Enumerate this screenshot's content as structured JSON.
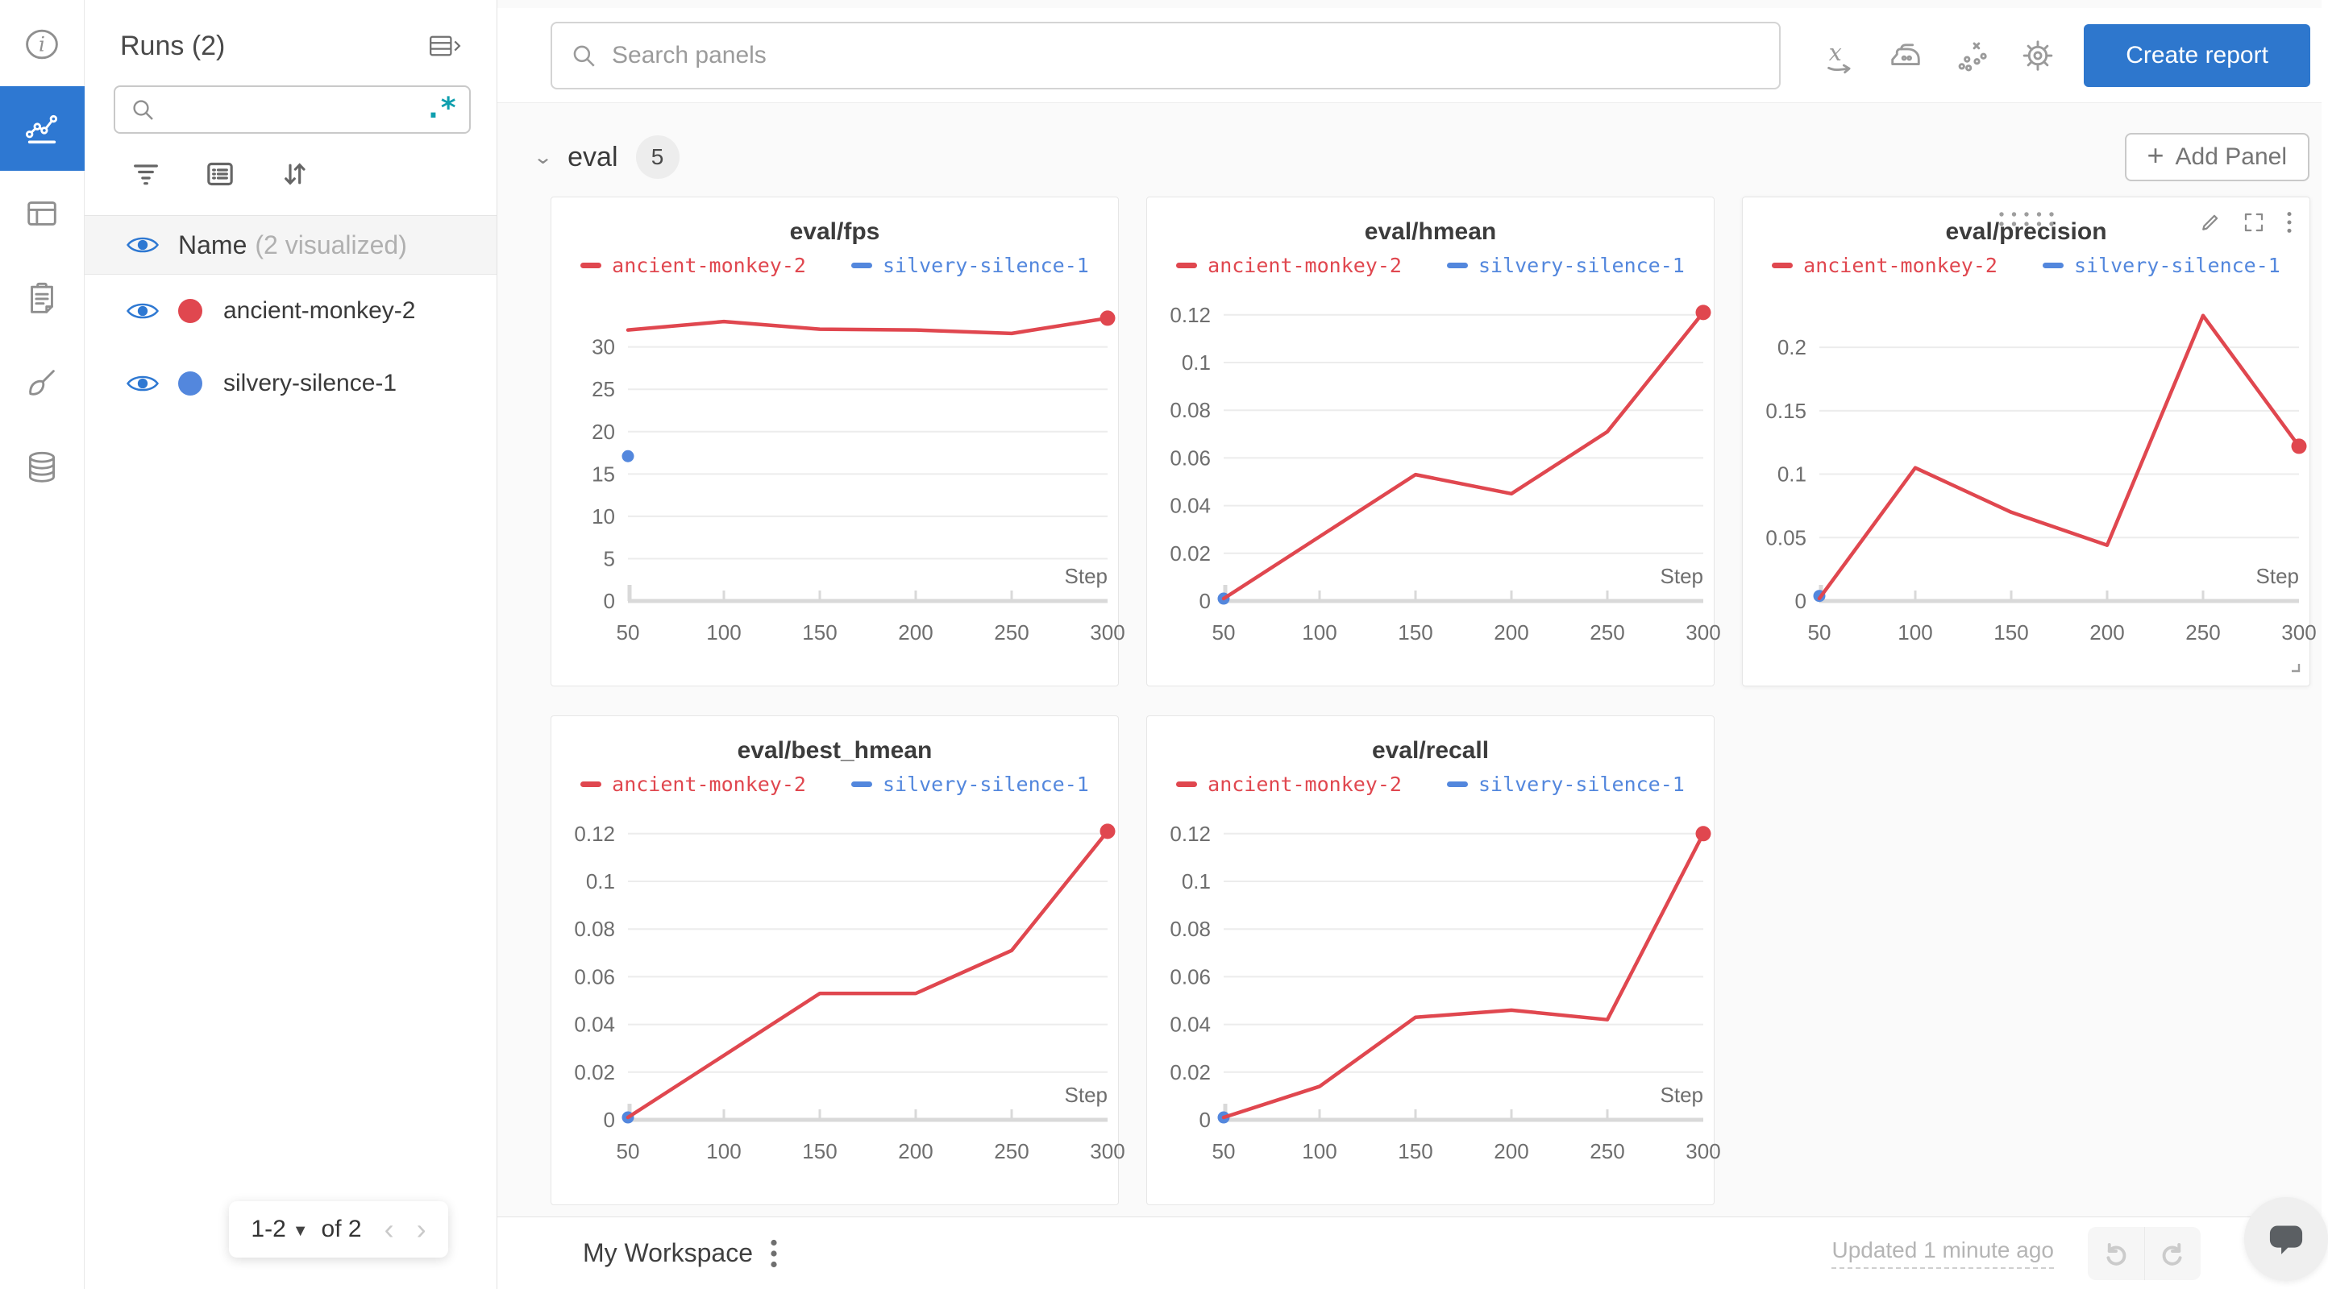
{
  "colors": {
    "accent_blue": "#2e78d2",
    "button_blue": "#2e77cd",
    "run_red": "#e0474f",
    "run_blue": "#5387dd",
    "regex_teal": "#0f9fae"
  },
  "sidebar": {
    "items": [
      {
        "icon": "info-icon",
        "active": false
      },
      {
        "icon": "line-chart-icon",
        "active": true
      },
      {
        "icon": "table-icon",
        "active": false
      },
      {
        "icon": "clipboard-icon",
        "active": false
      },
      {
        "icon": "broom-icon",
        "active": false
      },
      {
        "icon": "database-icon",
        "active": false
      }
    ]
  },
  "runs_panel": {
    "title": "Runs (2)",
    "search": {
      "value": "",
      "regex_glyph": ".*"
    },
    "header_row": {
      "label": "Name",
      "annotation": "(2 visualized)"
    },
    "runs": [
      {
        "name": "ancient-monkey-2",
        "color": "#e0474f",
        "visible": true
      },
      {
        "name": "silvery-silence-1",
        "color": "#5387dd",
        "visible": true
      }
    ],
    "pagination": {
      "range_label": "1-2",
      "of_label": "of 2"
    }
  },
  "topbar": {
    "search_placeholder": "Search panels",
    "icons": [
      "x-axis-icon",
      "smoothing-iron-icon",
      "outlier-scatter-icon",
      "settings-gear-icon"
    ],
    "create_report_label": "Create report"
  },
  "section": {
    "title": "eval",
    "panel_count": "5",
    "add_panel_plus": "+",
    "add_panel_label": "Add Panel"
  },
  "footer": {
    "workspace_label": "My Workspace",
    "updated_label": "Updated 1 minute ago"
  },
  "chart_data": [
    {
      "type": "line",
      "title": "eval/fps",
      "xlabel": "Step",
      "x_ticks": [
        50,
        100,
        150,
        200,
        250,
        300
      ],
      "y_ticks": [
        0,
        5,
        10,
        15,
        20,
        25,
        30
      ],
      "xlim": [
        50,
        300
      ],
      "ylim": [
        0,
        35.2
      ],
      "grid": true,
      "legend_position": "top",
      "hovered": false,
      "series": [
        {
          "name": "ancient-monkey-2",
          "color": "#e0474f",
          "x": [
            50,
            100,
            150,
            200,
            250,
            300
          ],
          "y": [
            32.0,
            33.0,
            32.1,
            32.0,
            31.6,
            33.4
          ],
          "marker_end": true
        },
        {
          "name": "silvery-silence-1",
          "color": "#5387dd",
          "x": [
            50
          ],
          "y": [
            17.1
          ],
          "scatter_only": true
        }
      ]
    },
    {
      "type": "line",
      "title": "eval/hmean",
      "xlabel": "Step",
      "x_ticks": [
        50,
        100,
        150,
        200,
        250,
        300
      ],
      "y_ticks": [
        0,
        0.02,
        0.04,
        0.06,
        0.08,
        0.1,
        0.12
      ],
      "xlim": [
        50,
        300
      ],
      "ylim": [
        0,
        0.125
      ],
      "grid": true,
      "legend_position": "top",
      "hovered": false,
      "series": [
        {
          "name": "ancient-monkey-2",
          "color": "#e0474f",
          "x": [
            50,
            150,
            200,
            250,
            300
          ],
          "y": [
            0.001,
            0.053,
            0.045,
            0.071,
            0.121
          ],
          "marker_end": true
        },
        {
          "name": "silvery-silence-1",
          "color": "#5387dd",
          "x": [
            50
          ],
          "y": [
            0.001
          ],
          "scatter_only": true
        }
      ]
    },
    {
      "type": "line",
      "title": "eval/precision",
      "xlabel": "Step",
      "x_ticks": [
        50,
        100,
        150,
        200,
        250,
        300
      ],
      "y_ticks": [
        0,
        0.05,
        0.1,
        0.15,
        0.2
      ],
      "xlim": [
        50,
        300
      ],
      "ylim": [
        0,
        0.235
      ],
      "grid": true,
      "legend_position": "top",
      "hovered": true,
      "series": [
        {
          "name": "ancient-monkey-2",
          "color": "#e0474f",
          "x": [
            50,
            100,
            150,
            200,
            250,
            300
          ],
          "y": [
            0.002,
            0.105,
            0.07,
            0.044,
            0.225,
            0.122
          ],
          "marker_end": true
        },
        {
          "name": "silvery-silence-1",
          "color": "#5387dd",
          "x": [
            50
          ],
          "y": [
            0.004
          ],
          "scatter_only": true
        }
      ]
    },
    {
      "type": "line",
      "title": "eval/best_hmean",
      "xlabel": "Step",
      "x_ticks": [
        50,
        100,
        150,
        200,
        250,
        300
      ],
      "y_ticks": [
        0,
        0.02,
        0.04,
        0.06,
        0.08,
        0.1,
        0.12
      ],
      "xlim": [
        50,
        300
      ],
      "ylim": [
        0,
        0.125
      ],
      "grid": true,
      "legend_position": "top",
      "hovered": false,
      "series": [
        {
          "name": "ancient-monkey-2",
          "color": "#e0474f",
          "x": [
            50,
            150,
            200,
            250,
            300
          ],
          "y": [
            0.001,
            0.053,
            0.053,
            0.071,
            0.121
          ],
          "marker_end": true
        },
        {
          "name": "silvery-silence-1",
          "color": "#5387dd",
          "x": [
            50
          ],
          "y": [
            0.001
          ],
          "scatter_only": true
        }
      ]
    },
    {
      "type": "line",
      "title": "eval/recall",
      "xlabel": "Step",
      "x_ticks": [
        50,
        100,
        150,
        200,
        250,
        300
      ],
      "y_ticks": [
        0,
        0.02,
        0.04,
        0.06,
        0.08,
        0.1,
        0.12
      ],
      "xlim": [
        50,
        300
      ],
      "ylim": [
        0,
        0.125
      ],
      "grid": true,
      "legend_position": "top",
      "hovered": false,
      "series": [
        {
          "name": "ancient-monkey-2",
          "color": "#e0474f",
          "x": [
            50,
            100,
            150,
            200,
            250,
            300
          ],
          "y": [
            0.001,
            0.014,
            0.043,
            0.046,
            0.042,
            0.12
          ],
          "marker_end": true
        },
        {
          "name": "silvery-silence-1",
          "color": "#5387dd",
          "x": [
            50
          ],
          "y": [
            0.001
          ],
          "scatter_only": true
        }
      ]
    }
  ]
}
